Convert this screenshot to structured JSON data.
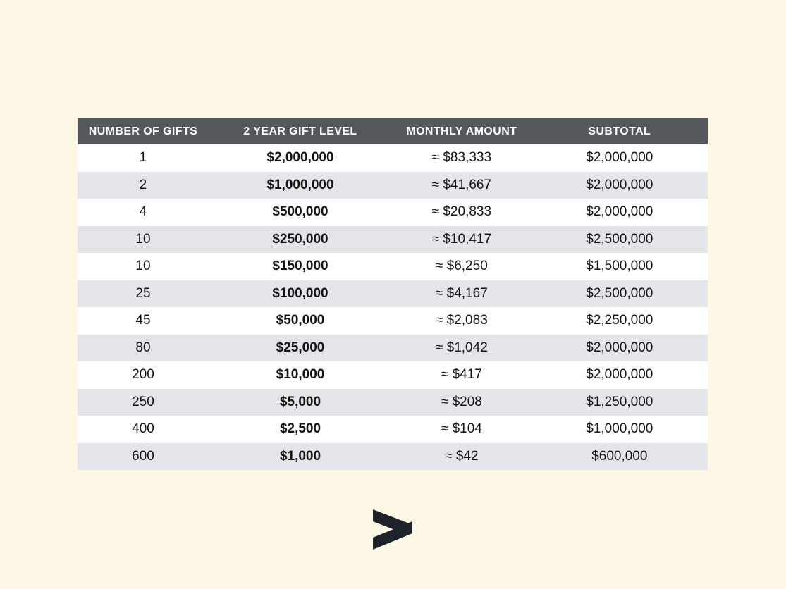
{
  "theme": {
    "background": "#fdf8e6",
    "header_bg": "#54575c",
    "header_text": "#ffffff",
    "row_bg": "#ffffff",
    "alt_row_bg": "#e4e5e8",
    "text_color": "#141414",
    "logo_color": "#1e2329"
  },
  "logo": {
    "glyph": "greater-than-mark"
  },
  "chart_data": {
    "type": "table",
    "title": "",
    "columns": [
      "NUMBER OF GIFTS",
      "2 YEAR GIFT LEVEL",
      "MONTHLY AMOUNT",
      "SUBTOTAL"
    ],
    "rows": [
      [
        "1",
        "$2,000,000",
        "≈ $83,333",
        "$2,000,000"
      ],
      [
        "2",
        "$1,000,000",
        "≈ $41,667",
        "$2,000,000"
      ],
      [
        "4",
        "$500,000",
        "≈ $20,833",
        "$2,000,000"
      ],
      [
        "10",
        "$250,000",
        "≈ $10,417",
        "$2,500,000"
      ],
      [
        "10",
        "$150,000",
        "≈ $6,250",
        "$1,500,000"
      ],
      [
        "25",
        "$100,000",
        "≈ $4,167",
        "$2,500,000"
      ],
      [
        "45",
        "$50,000",
        "≈ $2,083",
        "$2,250,000"
      ],
      [
        "80",
        "$25,000",
        "≈ $1,042",
        "$2,000,000"
      ],
      [
        "200",
        "$10,000",
        "≈ $417",
        "$2,000,000"
      ],
      [
        "250",
        "$5,000",
        "≈ $208",
        "$1,250,000"
      ],
      [
        "400",
        "$2,500",
        "≈ $104",
        "$1,000,000"
      ],
      [
        "600",
        "$1,000",
        "≈ $42",
        "$600,000"
      ]
    ]
  }
}
